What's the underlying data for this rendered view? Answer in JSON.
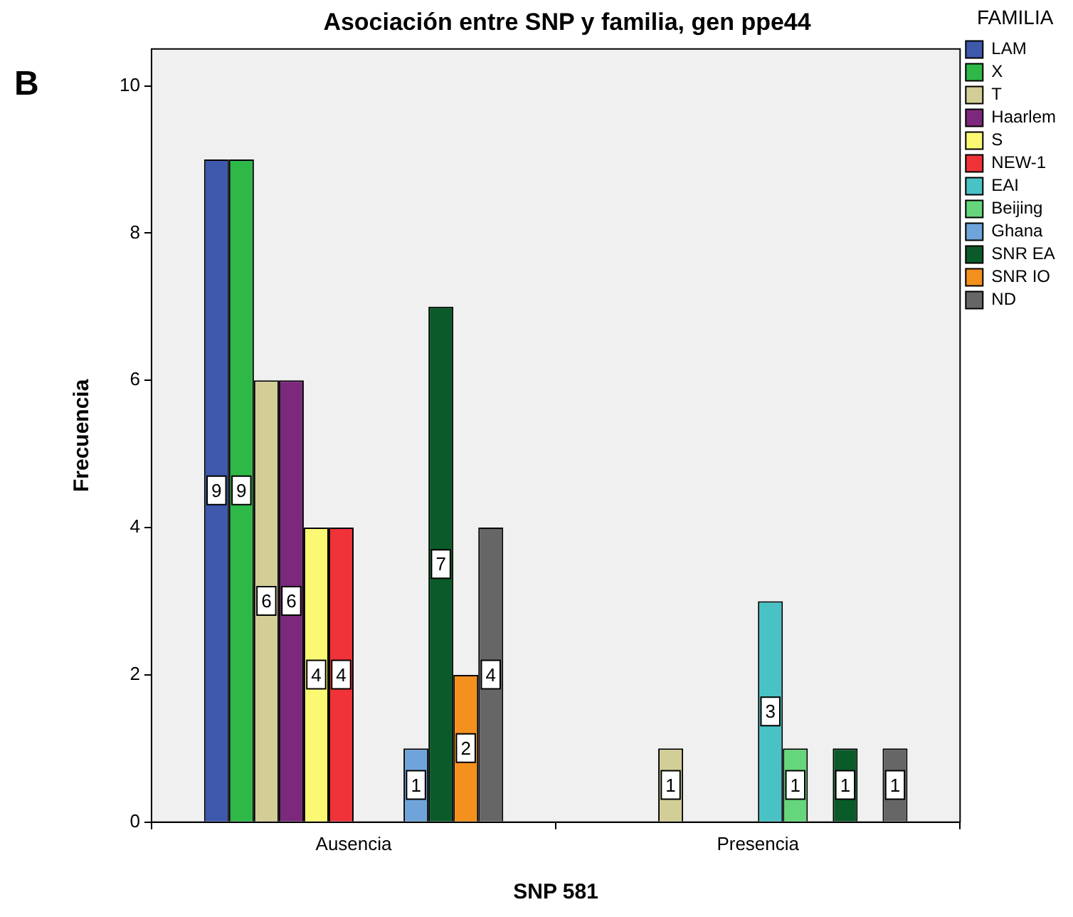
{
  "chart_data": {
    "type": "bar",
    "title": "Asociación entre SNP y familia, gen ppe44",
    "xlabel": "SNP 581",
    "ylabel": "Frecuencia",
    "legend_title": "FAMILIA",
    "annotations": [
      "B"
    ],
    "categories": [
      "Ausencia",
      "Presencia"
    ],
    "series": [
      {
        "name": "LAM",
        "color": "#3e58ac",
        "values": [
          9,
          null
        ]
      },
      {
        "name": "X",
        "color": "#2eb848",
        "values": [
          9,
          null
        ]
      },
      {
        "name": "T",
        "color": "#d3ce97",
        "values": [
          6,
          1
        ]
      },
      {
        "name": "Haarlem",
        "color": "#7c287d",
        "values": [
          6,
          null
        ]
      },
      {
        "name": "S",
        "color": "#fbf873",
        "values": [
          4,
          null
        ]
      },
      {
        "name": "NEW-1",
        "color": "#ef3338",
        "values": [
          4,
          null
        ]
      },
      {
        "name": "EAI",
        "color": "#48c2c5",
        "values": [
          null,
          3
        ]
      },
      {
        "name": "Beijing",
        "color": "#65d67b",
        "values": [
          null,
          1
        ]
      },
      {
        "name": "Ghana",
        "color": "#6ea4d9",
        "values": [
          1,
          null
        ]
      },
      {
        "name": "SNR EA",
        "color": "#0b5b2a",
        "values": [
          7,
          1
        ]
      },
      {
        "name": "SNR IO",
        "color": "#f4901e",
        "values": [
          2,
          null
        ]
      },
      {
        "name": "ND",
        "color": "#666666",
        "values": [
          4,
          1
        ]
      }
    ],
    "ylim": [
      0,
      10.5
    ],
    "yticks": [
      0,
      2,
      4,
      6,
      8,
      10
    ],
    "grid": false,
    "legend": "right",
    "data_labels": true
  }
}
